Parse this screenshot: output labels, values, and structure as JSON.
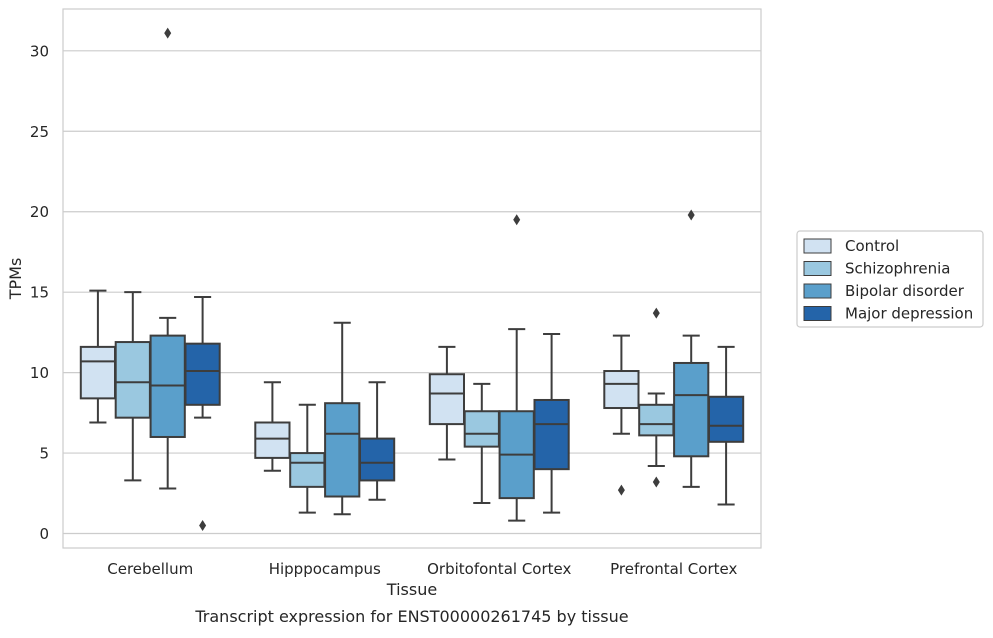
{
  "caption": "Transcript expression for ENST00000261745 by tissue",
  "chart_data": {
    "type": "boxplot",
    "title": "",
    "xlabel": "Tissue",
    "ylabel": "TPMs",
    "ylim": [
      -0.9,
      32.6
    ],
    "yticks": [
      0,
      5,
      10,
      15,
      20,
      25,
      30
    ],
    "grid": "horizontal",
    "legend_position": "right",
    "categories": [
      "Cerebellum",
      "Hipppocampus",
      "Orbitofontal Cortex",
      "Prefrontal Cortex"
    ],
    "series": [
      {
        "name": "Control",
        "color": "#d1e2f2",
        "boxes": [
          {
            "whisker_low": 6.9,
            "q1": 8.4,
            "median": 10.7,
            "q3": 11.6,
            "whisker_high": 15.1,
            "outliers": []
          },
          {
            "whisker_low": 3.9,
            "q1": 4.7,
            "median": 5.9,
            "q3": 6.9,
            "whisker_high": 9.4,
            "outliers": []
          },
          {
            "whisker_low": 4.6,
            "q1": 6.8,
            "median": 8.7,
            "q3": 9.9,
            "whisker_high": 11.6,
            "outliers": []
          },
          {
            "whisker_low": 6.2,
            "q1": 7.8,
            "median": 9.3,
            "q3": 10.1,
            "whisker_high": 12.3,
            "outliers": [
              2.7
            ]
          }
        ]
      },
      {
        "name": "Schizophrenia",
        "color": "#9ac8e0",
        "boxes": [
          {
            "whisker_low": 3.3,
            "q1": 7.2,
            "median": 9.4,
            "q3": 11.9,
            "whisker_high": 15.0,
            "outliers": []
          },
          {
            "whisker_low": 1.3,
            "q1": 2.9,
            "median": 4.4,
            "q3": 5.0,
            "whisker_high": 8.0,
            "outliers": []
          },
          {
            "whisker_low": 1.9,
            "q1": 5.4,
            "median": 6.2,
            "q3": 7.6,
            "whisker_high": 9.3,
            "outliers": []
          },
          {
            "whisker_low": 4.2,
            "q1": 6.1,
            "median": 6.8,
            "q3": 8.0,
            "whisker_high": 8.7,
            "outliers": [
              3.2,
              13.7
            ]
          }
        ]
      },
      {
        "name": "Bipolar disorder",
        "color": "#5a9fcb",
        "boxes": [
          {
            "whisker_low": 2.8,
            "q1": 6.0,
            "median": 9.2,
            "q3": 12.3,
            "whisker_high": 13.4,
            "outliers": [
              31.1
            ]
          },
          {
            "whisker_low": 1.2,
            "q1": 2.3,
            "median": 6.2,
            "q3": 8.1,
            "whisker_high": 13.1,
            "outliers": []
          },
          {
            "whisker_low": 0.8,
            "q1": 2.2,
            "median": 4.9,
            "q3": 7.6,
            "whisker_high": 12.7,
            "outliers": [
              19.5
            ]
          },
          {
            "whisker_low": 2.9,
            "q1": 4.8,
            "median": 8.6,
            "q3": 10.6,
            "whisker_high": 12.3,
            "outliers": [
              19.8
            ]
          }
        ]
      },
      {
        "name": "Major depression",
        "color": "#2464a9",
        "boxes": [
          {
            "whisker_low": 7.2,
            "q1": 8.0,
            "median": 10.1,
            "q3": 11.8,
            "whisker_high": 14.7,
            "outliers": [
              0.5
            ]
          },
          {
            "whisker_low": 2.1,
            "q1": 3.3,
            "median": 4.4,
            "q3": 5.9,
            "whisker_high": 9.4,
            "outliers": []
          },
          {
            "whisker_low": 1.3,
            "q1": 4.0,
            "median": 6.8,
            "q3": 8.3,
            "whisker_high": 12.4,
            "outliers": []
          },
          {
            "whisker_low": 1.8,
            "q1": 5.7,
            "median": 6.7,
            "q3": 8.5,
            "whisker_high": 11.6,
            "outliers": []
          }
        ]
      }
    ]
  }
}
